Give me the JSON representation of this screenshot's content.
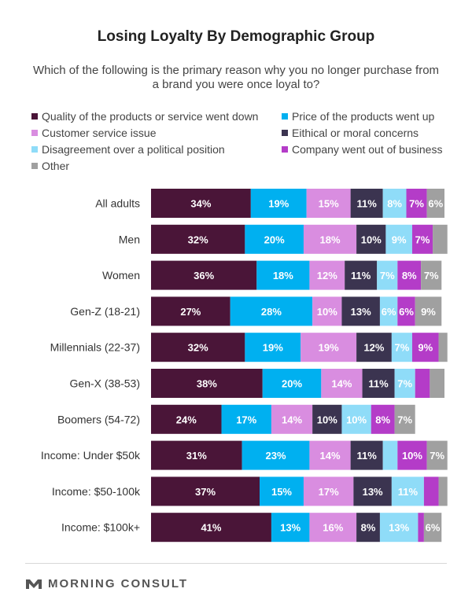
{
  "chart_data": {
    "type": "bar",
    "orientation": "horizontal",
    "stacked": true,
    "title": "Losing Loyalty By Demographic Group",
    "subtitle": "Which of the following is the primary reason why you no longer purchase from a brand you were once loyal to?",
    "categories": [
      "All adults",
      "Men",
      "Women",
      "Gen-Z (18-21)",
      "Millennials (22-37)",
      "Gen-X (38-53)",
      "Boomers (54-72)",
      "Income: Under $50k",
      "Income: $50-100k",
      "Income: $100k+"
    ],
    "series": [
      {
        "name": "Quality of the products or service went down",
        "color": "#4a1538",
        "values": [
          34,
          32,
          36,
          27,
          32,
          38,
          24,
          31,
          37,
          41
        ],
        "labels": [
          "34%",
          "32%",
          "36%",
          "27%",
          "32%",
          "38%",
          "24%",
          "31%",
          "37%",
          "41%"
        ]
      },
      {
        "name": "Price of the products went up",
        "color": "#00b0f0",
        "values": [
          19,
          20,
          18,
          28,
          19,
          20,
          17,
          23,
          15,
          13
        ],
        "labels": [
          "19%",
          "20%",
          "18%",
          "28%",
          "19%",
          "20%",
          "17%",
          "23%",
          "15%",
          "13%"
        ]
      },
      {
        "name": "Customer service issue",
        "color": "#d98de0",
        "values": [
          15,
          18,
          12,
          10,
          19,
          14,
          14,
          14,
          17,
          16
        ],
        "labels": [
          "15%",
          "18%",
          "12%",
          "10%",
          "19%",
          "14%",
          "14%",
          "14%",
          "17%",
          "16%"
        ]
      },
      {
        "name": "Eithical or moral concerns",
        "color": "#3b3450",
        "values": [
          11,
          10,
          11,
          13,
          12,
          11,
          10,
          11,
          13,
          8
        ],
        "labels": [
          "11%",
          "10%",
          "11%",
          "13%",
          "12%",
          "11%",
          "10%",
          "11%",
          "13%",
          "8%"
        ]
      },
      {
        "name": "Disagreement over a political position",
        "color": "#8fdcf8",
        "values": [
          8,
          9,
          7,
          6,
          7,
          7,
          10,
          5,
          11,
          13
        ],
        "labels": [
          "8%",
          "9%",
          "7%",
          "6%",
          "7%",
          "7%",
          "10%",
          "",
          "11%",
          "13%"
        ]
      },
      {
        "name": "Company went out of business",
        "color": "#b43cc8",
        "values": [
          7,
          7,
          8,
          6,
          9,
          5,
          8,
          10,
          5,
          2
        ],
        "labels": [
          "7%",
          "7%",
          "8%",
          "6%",
          "9%",
          "",
          "8%",
          "10%",
          "",
          ""
        ]
      },
      {
        "name": "Other",
        "color": "#a0a0a0",
        "values": [
          6,
          5,
          7,
          9,
          3,
          5,
          7,
          7,
          3,
          6
        ],
        "labels": [
          "6%",
          "",
          "7%",
          "9%",
          "",
          "",
          "7%",
          "7%",
          "",
          "6%"
        ]
      }
    ],
    "xlim": [
      0,
      100
    ],
    "legend_position": "top",
    "grid": false
  },
  "footer": {
    "brand": "MORNING CONSULT",
    "logo_icon": "morning-consult-logo-icon"
  }
}
